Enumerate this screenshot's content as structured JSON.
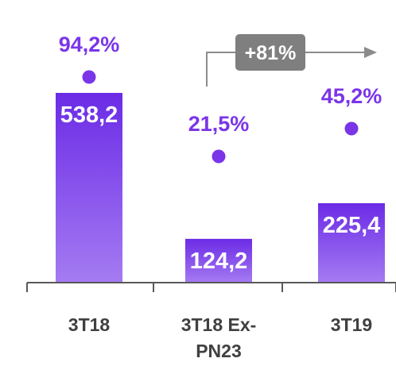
{
  "chart_data": {
    "type": "bar",
    "categories": [
      "3T18",
      "3T18 Ex-PN23",
      "3T19"
    ],
    "category_lines": [
      [
        "3T18"
      ],
      [
        "3T18 Ex-",
        "PN23"
      ],
      [
        "3T19"
      ]
    ],
    "values": [
      538.2,
      124.2,
      225.4
    ],
    "value_labels": [
      "538,2",
      "124,2",
      "225,4"
    ],
    "ratios": [
      94.2,
      21.5,
      45.2
    ],
    "ratio_labels": [
      "94,2%",
      "21,5%",
      "45,2%"
    ],
    "growth_label": "+81%",
    "ylim": [
      0,
      600
    ],
    "legend": "none",
    "grid": false,
    "colors": {
      "bar_top": "#6B2BE6",
      "bar_bottom": "#A57BF2",
      "ratio": "#7A35E8",
      "axis": "#595959",
      "category_text": "#404040",
      "growth_box": "#7F7F7F",
      "growth_arrow": "#8C8C8C"
    }
  }
}
